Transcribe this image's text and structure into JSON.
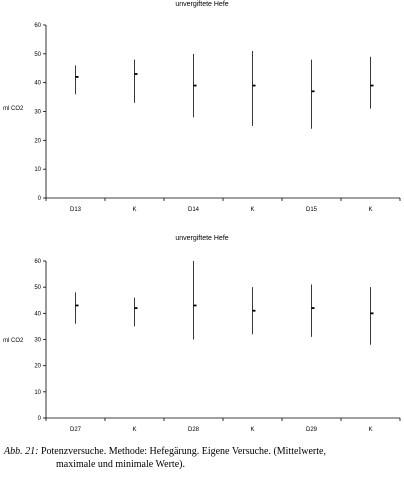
{
  "chart_data": [
    {
      "type": "range",
      "title": "unvergiftete Hefe",
      "ylabel": "ml CO2",
      "xlabel": "",
      "ylim": [
        0,
        60
      ],
      "yticks": [
        0,
        10,
        20,
        30,
        40,
        50,
        60
      ],
      "categories": [
        "D13",
        "K",
        "D14",
        "K",
        "D15",
        "K"
      ],
      "mean": [
        42,
        43,
        39,
        39,
        37,
        39
      ],
      "min": [
        36,
        33,
        28,
        25,
        24,
        31
      ],
      "max": [
        46,
        48,
        50,
        51,
        48,
        49
      ],
      "grid": false
    },
    {
      "type": "range",
      "title": "unvergiftete Hefe",
      "ylabel": "ml CO2",
      "xlabel": "",
      "ylim": [
        0,
        60
      ],
      "yticks": [
        0,
        10,
        20,
        30,
        40,
        50,
        60
      ],
      "categories": [
        "D27",
        "K",
        "D28",
        "K",
        "D29",
        "K"
      ],
      "mean": [
        43,
        42,
        43,
        41,
        42,
        40
      ],
      "min": [
        36,
        35,
        30,
        32,
        31,
        28
      ],
      "max": [
        48,
        46,
        60,
        50,
        51,
        50
      ],
      "grid": false
    }
  ],
  "caption": {
    "label": "Abb. 21:",
    "line1": "Potenzversuche. Methode: Hefegärung. Eigene Versuche. (Mittelwerte,",
    "line2": "maximale und minimale Werte)."
  }
}
